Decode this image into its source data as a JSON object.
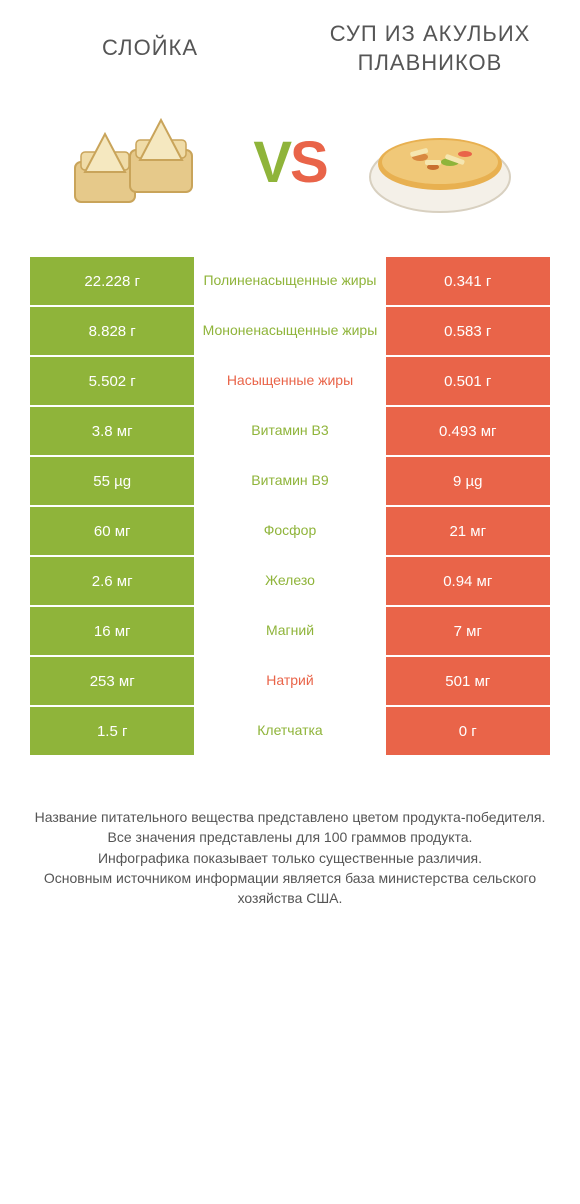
{
  "header": {
    "left_title": "СЛОЙКА",
    "right_title": "СУП ИЗ АКУЛЬИХ ПЛАВНИКОВ"
  },
  "vs": {
    "v": "V",
    "s": "S"
  },
  "colors": {
    "green": "#8fb43a",
    "orange": "#e96449",
    "text": "#555555",
    "white": "#ffffff"
  },
  "rows": [
    {
      "left": "22.228 г",
      "mid": "Полиненасыщенные жиры",
      "mid_color": "green",
      "right": "0.341 г"
    },
    {
      "left": "8.828 г",
      "mid": "Мононенасыщенные жиры",
      "mid_color": "green",
      "right": "0.583 г"
    },
    {
      "left": "5.502 г",
      "mid": "Насыщенные жиры",
      "mid_color": "orange",
      "right": "0.501 г"
    },
    {
      "left": "3.8 мг",
      "mid": "Витамин B3",
      "mid_color": "green",
      "right": "0.493 мг"
    },
    {
      "left": "55 µg",
      "mid": "Витамин B9",
      "mid_color": "green",
      "right": "9 µg"
    },
    {
      "left": "60 мг",
      "mid": "Фосфор",
      "mid_color": "green",
      "right": "21 мг"
    },
    {
      "left": "2.6 мг",
      "mid": "Железо",
      "mid_color": "green",
      "right": "0.94 мг"
    },
    {
      "left": "16 мг",
      "mid": "Магний",
      "mid_color": "green",
      "right": "7 мг"
    },
    {
      "left": "253 мг",
      "mid": "Натрий",
      "mid_color": "orange",
      "right": "501 мг"
    },
    {
      "left": "1.5 г",
      "mid": "Клетчатка",
      "mid_color": "green",
      "right": "0 г"
    }
  ],
  "footer": {
    "line1": "Название питательного вещества представлено цветом продукта-победителя.",
    "line2": "Все значения представлены для 100 граммов продукта.",
    "line3": "Инфографика показывает только существенные различия.",
    "line4": "Основным источником информации является база министерства сельского хозяйства США."
  }
}
